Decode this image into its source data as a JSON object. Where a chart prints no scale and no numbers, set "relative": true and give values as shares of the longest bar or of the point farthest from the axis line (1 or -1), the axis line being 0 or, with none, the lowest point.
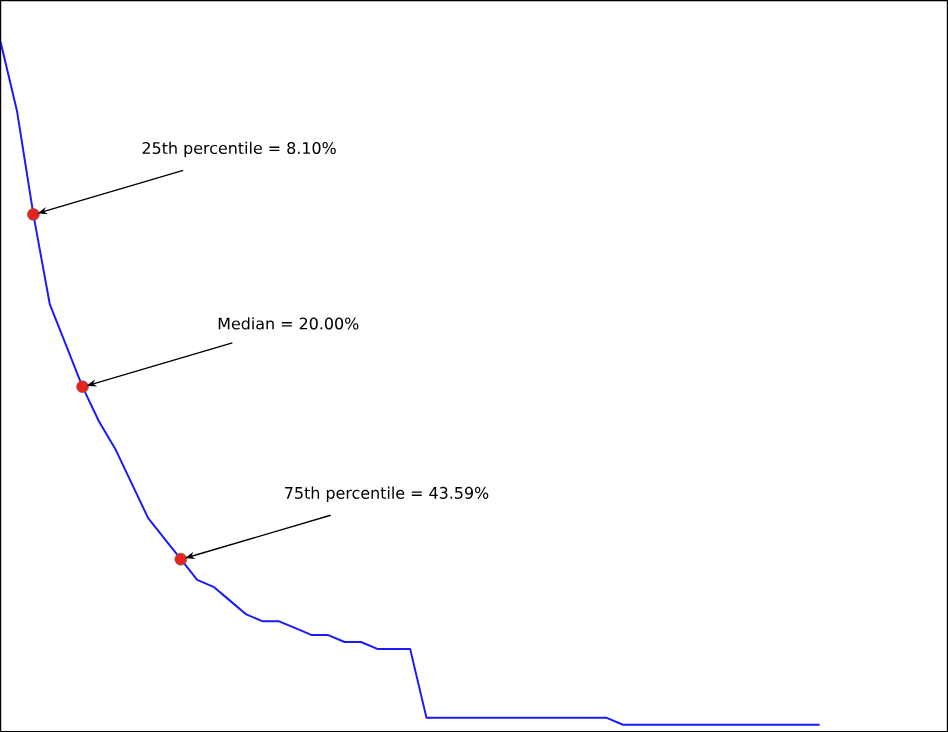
{
  "chart_data": {
    "type": "line",
    "relative": true,
    "tick_labels": false,
    "categories": [
      null,
      null,
      null,
      null,
      null,
      null,
      null,
      null,
      null,
      null,
      null,
      null,
      null,
      null,
      null,
      null,
      null,
      null,
      null,
      null,
      null,
      null,
      null,
      null,
      null,
      null,
      null,
      null,
      null,
      null,
      null,
      null,
      null,
      null,
      null,
      null,
      null,
      null,
      null,
      null,
      null,
      null,
      null,
      null,
      null,
      null,
      null,
      null,
      null,
      null,
      null
    ],
    "series": [
      {
        "color": "#1a1aff",
        "values": [
          1.0,
          0.9,
          0.75,
          0.62,
          0.56,
          0.5,
          0.45,
          0.41,
          0.36,
          0.31,
          0.28,
          0.25,
          0.22,
          0.21,
          0.19,
          0.17,
          0.16,
          0.16,
          0.15,
          0.14,
          0.14,
          0.13,
          0.13,
          0.12,
          0.12,
          0.12,
          0.02,
          0.02,
          0.02,
          0.02,
          0.02,
          0.02,
          0.02,
          0.02,
          0.02,
          0.02,
          0.02,
          0.02,
          0.01,
          0.01,
          0.01,
          0.01,
          0.01,
          0.01,
          0.01,
          0.01,
          0.01,
          0.01,
          0.01,
          0.01,
          0.01
        ]
      }
    ],
    "annotations": [
      "25th percentile = 8.10%",
      "Median = 20.00%",
      "75th percentile = 43.59%"
    ]
  }
}
